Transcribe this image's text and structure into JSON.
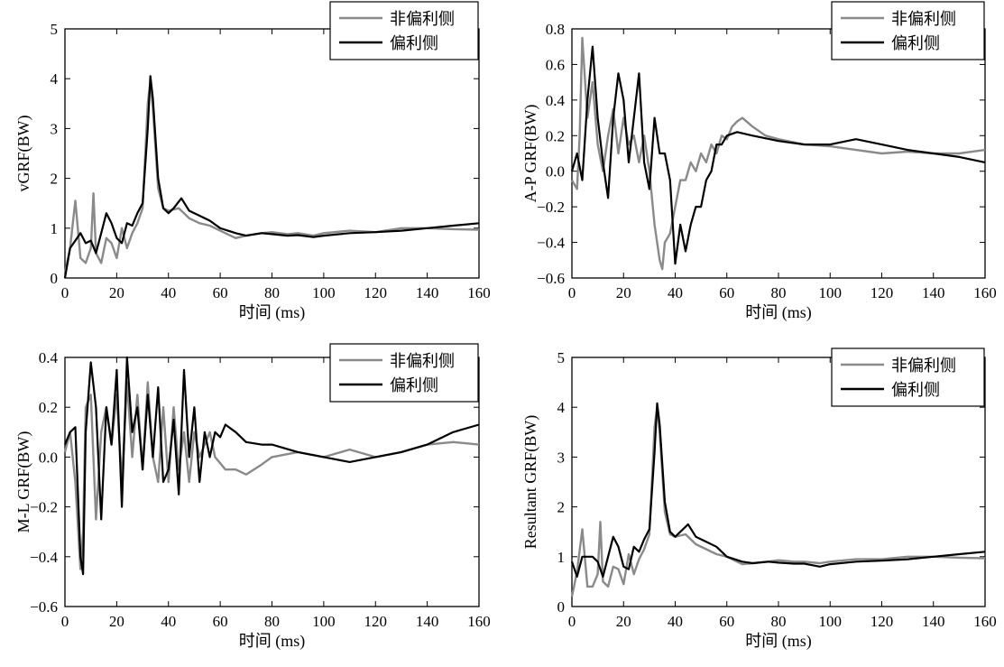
{
  "legend": {
    "series_names": [
      "非偏利侧",
      "偏利侧"
    ],
    "colors": [
      "#8a8a8a",
      "#000000"
    ]
  },
  "chart_data": [
    {
      "type": "line",
      "title": "",
      "xlabel": "时间 (ms)",
      "ylabel": "vGRF(BW)",
      "xlim": [
        0,
        160
      ],
      "ylim": [
        0,
        5
      ],
      "xticks": [
        0,
        20,
        40,
        60,
        80,
        100,
        120,
        140,
        160
      ],
      "yticks": [
        0,
        1,
        2,
        3,
        4,
        5
      ],
      "grid": false,
      "legend_position": "top-right",
      "series": [
        {
          "name": "非偏利侧",
          "color": "#8a8a8a",
          "x": [
            0,
            2,
            4,
            6,
            8,
            10,
            11,
            12,
            14,
            16,
            18,
            20,
            22,
            24,
            26,
            28,
            30,
            32,
            33,
            34,
            36,
            38,
            40,
            44,
            48,
            52,
            56,
            60,
            66,
            70,
            76,
            80,
            86,
            90,
            96,
            100,
            110,
            120,
            130,
            140,
            150,
            160
          ],
          "y": [
            0.1,
            0.6,
            1.55,
            0.4,
            0.3,
            0.6,
            1.7,
            0.5,
            0.3,
            0.8,
            0.7,
            0.4,
            1.0,
            0.6,
            0.9,
            1.1,
            1.4,
            3.5,
            3.95,
            3.4,
            1.8,
            1.4,
            1.35,
            1.4,
            1.2,
            1.1,
            1.05,
            0.95,
            0.8,
            0.85,
            0.9,
            0.92,
            0.88,
            0.9,
            0.85,
            0.9,
            0.95,
            0.92,
            1.0,
            1.0,
            0.98,
            0.97
          ]
        },
        {
          "name": "偏利侧",
          "color": "#000000",
          "x": [
            0,
            2,
            4,
            6,
            8,
            10,
            12,
            14,
            16,
            18,
            20,
            22,
            24,
            26,
            28,
            30,
            32,
            33,
            34,
            36,
            38,
            40,
            42,
            45,
            48,
            52,
            56,
            60,
            66,
            70,
            76,
            80,
            86,
            90,
            96,
            100,
            110,
            120,
            130,
            140,
            150,
            160
          ],
          "y": [
            0.0,
            0.6,
            0.75,
            0.9,
            0.7,
            0.75,
            0.5,
            0.9,
            1.3,
            1.1,
            0.8,
            0.7,
            1.1,
            1.05,
            1.3,
            1.5,
            3.0,
            4.05,
            3.6,
            2.0,
            1.4,
            1.3,
            1.4,
            1.6,
            1.35,
            1.25,
            1.15,
            1.0,
            0.9,
            0.85,
            0.9,
            0.88,
            0.85,
            0.86,
            0.82,
            0.85,
            0.9,
            0.92,
            0.95,
            1.0,
            1.05,
            1.1
          ]
        }
      ]
    },
    {
      "type": "line",
      "title": "",
      "xlabel": "时间 (ms)",
      "ylabel": "A-P GRF(BW)",
      "xlim": [
        0,
        160
      ],
      "ylim": [
        -0.6,
        0.8
      ],
      "xticks": [
        0,
        20,
        40,
        60,
        80,
        100,
        120,
        140,
        160
      ],
      "yticks": [
        -0.6,
        -0.4,
        -0.2,
        0.0,
        0.2,
        0.4,
        0.6,
        0.8
      ],
      "grid": false,
      "legend_position": "top-right",
      "series": [
        {
          "name": "非偏利侧",
          "color": "#8a8a8a",
          "x": [
            0,
            2,
            3,
            4,
            6,
            8,
            10,
            12,
            14,
            16,
            18,
            20,
            22,
            24,
            26,
            28,
            30,
            32,
            34,
            35,
            36,
            38,
            40,
            42,
            44,
            46,
            48,
            50,
            52,
            54,
            56,
            58,
            60,
            62,
            64,
            66,
            70,
            75,
            80,
            90,
            100,
            110,
            120,
            130,
            140,
            150,
            160
          ],
          "y": [
            -0.05,
            -0.1,
            0.2,
            0.75,
            0.3,
            0.5,
            0.15,
            0.0,
            0.2,
            0.35,
            0.1,
            0.3,
            0.15,
            0.2,
            0.05,
            0.2,
            0.0,
            -0.3,
            -0.5,
            -0.55,
            -0.4,
            -0.35,
            -0.2,
            -0.05,
            -0.05,
            0.05,
            0.0,
            0.1,
            0.05,
            0.15,
            0.1,
            0.2,
            0.18,
            0.25,
            0.28,
            0.3,
            0.25,
            0.2,
            0.18,
            0.15,
            0.14,
            0.12,
            0.1,
            0.11,
            0.1,
            0.1,
            0.12
          ]
        },
        {
          "name": "偏利侧",
          "color": "#000000",
          "x": [
            0,
            2,
            4,
            6,
            8,
            10,
            12,
            14,
            16,
            18,
            20,
            22,
            24,
            26,
            28,
            30,
            32,
            34,
            36,
            38,
            40,
            42,
            44,
            46,
            48,
            50,
            52,
            54,
            56,
            58,
            60,
            64,
            70,
            80,
            90,
            100,
            110,
            120,
            130,
            140,
            150,
            160
          ],
          "y": [
            0.0,
            0.1,
            -0.05,
            0.4,
            0.7,
            0.3,
            0.05,
            -0.15,
            0.3,
            0.55,
            0.4,
            0.05,
            0.3,
            0.55,
            0.05,
            -0.1,
            0.3,
            0.1,
            0.1,
            -0.05,
            -0.52,
            -0.3,
            -0.45,
            -0.3,
            -0.2,
            -0.2,
            -0.05,
            0.0,
            0.15,
            0.15,
            0.2,
            0.22,
            0.2,
            0.17,
            0.15,
            0.15,
            0.18,
            0.15,
            0.12,
            0.1,
            0.08,
            0.05
          ]
        }
      ]
    },
    {
      "type": "line",
      "title": "",
      "xlabel": "时间 (ms)",
      "ylabel": "M-L GRF(BW)",
      "xlim": [
        0,
        160
      ],
      "ylim": [
        -0.6,
        0.4
      ],
      "xticks": [
        0,
        20,
        40,
        60,
        80,
        100,
        120,
        140,
        160
      ],
      "yticks": [
        -0.6,
        -0.4,
        -0.2,
        0.0,
        0.2,
        0.4
      ],
      "grid": false,
      "legend_position": "top-right",
      "series": [
        {
          "name": "非偏利侧",
          "color": "#8a8a8a",
          "x": [
            0,
            2,
            4,
            6,
            7,
            8,
            10,
            12,
            14,
            16,
            18,
            20,
            22,
            24,
            26,
            28,
            30,
            32,
            34,
            36,
            38,
            40,
            42,
            44,
            46,
            48,
            50,
            52,
            54,
            56,
            58,
            62,
            66,
            70,
            76,
            80,
            90,
            100,
            110,
            120,
            130,
            140,
            150,
            160
          ],
          "y": [
            0.02,
            0.1,
            -0.1,
            -0.45,
            -0.3,
            0.2,
            0.25,
            -0.25,
            0.1,
            0.2,
            0.05,
            0.25,
            -0.1,
            0.3,
            0.0,
            0.25,
            -0.05,
            0.3,
            0.0,
            -0.1,
            0.2,
            -0.1,
            0.2,
            -0.05,
            0.1,
            -0.1,
            0.1,
            0.0,
            0.05,
            0.1,
            0.0,
            -0.05,
            -0.05,
            -0.07,
            -0.03,
            0.0,
            0.02,
            0.0,
            0.03,
            0.0,
            0.02,
            0.05,
            0.06,
            0.05
          ]
        },
        {
          "name": "偏利侧",
          "color": "#000000",
          "x": [
            0,
            2,
            4,
            6,
            7,
            8,
            10,
            12,
            14,
            16,
            18,
            20,
            22,
            24,
            26,
            28,
            30,
            32,
            34,
            36,
            38,
            40,
            42,
            44,
            46,
            48,
            50,
            52,
            54,
            56,
            58,
            60,
            62,
            66,
            70,
            76,
            80,
            90,
            100,
            110,
            120,
            130,
            140,
            150,
            160
          ],
          "y": [
            0.05,
            0.1,
            0.12,
            -0.4,
            -0.47,
            0.1,
            0.38,
            0.2,
            -0.25,
            0.2,
            0.05,
            0.35,
            -0.2,
            0.4,
            0.1,
            0.2,
            -0.05,
            0.25,
            0.0,
            0.28,
            -0.1,
            -0.05,
            0.15,
            -0.15,
            0.35,
            0.0,
            0.2,
            -0.1,
            0.1,
            0.0,
            0.1,
            0.08,
            0.13,
            0.1,
            0.06,
            0.05,
            0.05,
            0.02,
            0.0,
            -0.02,
            0.0,
            0.02,
            0.05,
            0.1,
            0.13
          ]
        }
      ]
    },
    {
      "type": "line",
      "title": "",
      "xlabel": "时间 (ms)",
      "ylabel": "Resultant GRF(BW)",
      "xlim": [
        0,
        160
      ],
      "ylim": [
        0,
        5
      ],
      "xticks": [
        0,
        20,
        40,
        60,
        80,
        100,
        120,
        140,
        160
      ],
      "yticks": [
        0,
        1,
        2,
        3,
        4,
        5
      ],
      "grid": false,
      "legend_position": "top-right",
      "series": [
        {
          "name": "非偏利侧",
          "color": "#8a8a8a",
          "x": [
            0,
            2,
            4,
            6,
            8,
            10,
            11,
            12,
            14,
            16,
            18,
            20,
            22,
            24,
            26,
            28,
            30,
            32,
            33,
            34,
            36,
            38,
            40,
            44,
            48,
            52,
            56,
            60,
            66,
            70,
            76,
            80,
            86,
            90,
            96,
            100,
            110,
            120,
            130,
            140,
            150,
            160
          ],
          "y": [
            0.2,
            0.7,
            1.55,
            0.4,
            0.4,
            0.65,
            1.7,
            0.5,
            0.4,
            0.8,
            0.75,
            0.45,
            1.05,
            0.65,
            0.95,
            1.15,
            1.45,
            3.6,
            4.0,
            3.5,
            1.9,
            1.45,
            1.4,
            1.45,
            1.25,
            1.15,
            1.05,
            1.0,
            0.85,
            0.87,
            0.9,
            0.93,
            0.9,
            0.9,
            0.87,
            0.9,
            0.95,
            0.95,
            1.0,
            1.0,
            0.98,
            0.97
          ]
        },
        {
          "name": "偏利侧",
          "color": "#000000",
          "x": [
            0,
            2,
            4,
            6,
            8,
            10,
            12,
            14,
            16,
            18,
            20,
            22,
            24,
            26,
            28,
            30,
            32,
            33,
            34,
            36,
            38,
            40,
            42,
            45,
            48,
            52,
            56,
            60,
            66,
            70,
            76,
            80,
            86,
            90,
            96,
            100,
            110,
            120,
            130,
            140,
            150,
            160
          ],
          "y": [
            0.9,
            0.6,
            1.0,
            1.0,
            1.0,
            0.9,
            0.6,
            1.0,
            1.4,
            1.2,
            0.8,
            0.75,
            1.2,
            1.1,
            1.35,
            1.55,
            3.1,
            4.08,
            3.65,
            2.1,
            1.5,
            1.4,
            1.5,
            1.65,
            1.4,
            1.3,
            1.2,
            1.0,
            0.9,
            0.87,
            0.9,
            0.88,
            0.86,
            0.86,
            0.8,
            0.85,
            0.9,
            0.92,
            0.95,
            1.0,
            1.05,
            1.1
          ]
        }
      ]
    }
  ]
}
